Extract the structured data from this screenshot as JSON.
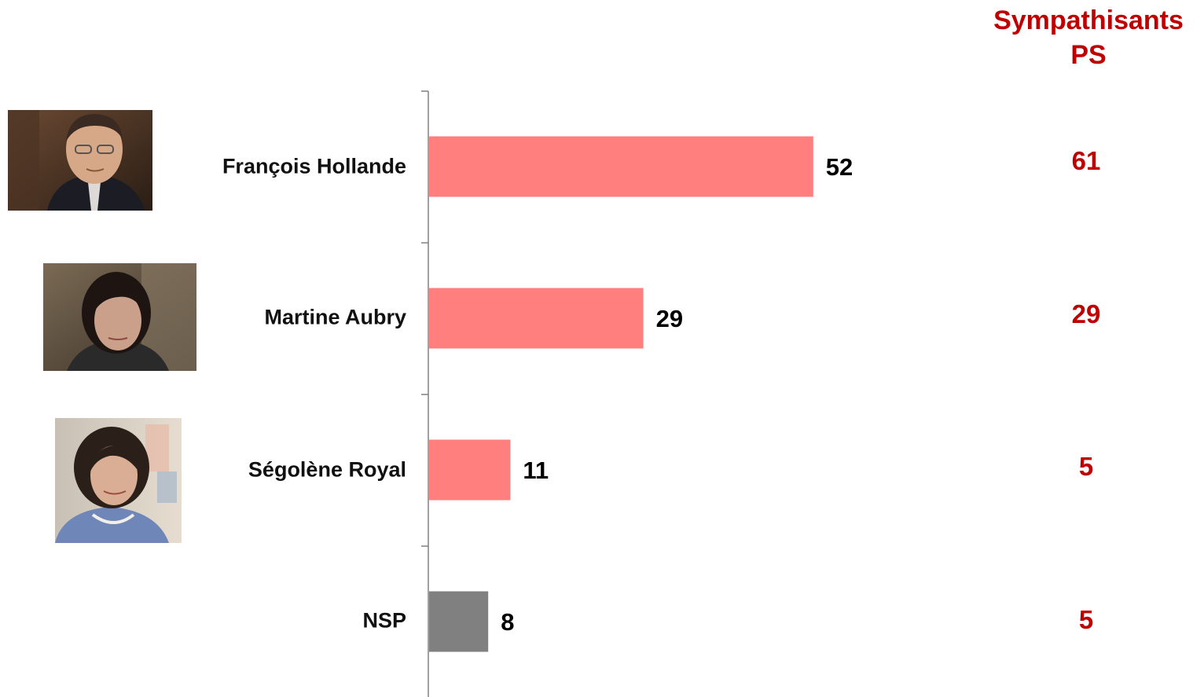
{
  "header": {
    "line1": "Sympathisants",
    "line2": "PS"
  },
  "colors": {
    "bar_main": "#ff7f7f",
    "bar_nsp": "#808080",
    "accent_red": "#c00000",
    "axis": "#808080"
  },
  "chart_data": {
    "type": "bar",
    "orientation": "horizontal",
    "categories": [
      "François Hollande",
      "Martine Aubry",
      "Ségolène Royal",
      "NSP"
    ],
    "values": [
      52,
      29,
      11,
      8
    ],
    "bar_colors": [
      "#ff7f7f",
      "#ff7f7f",
      "#ff7f7f",
      "#808080"
    ],
    "xlim": [
      0,
      100
    ],
    "grid": false,
    "side_column": {
      "title": "Sympathisants PS",
      "values": [
        61,
        29,
        5,
        5
      ]
    }
  },
  "rows": [
    {
      "label": "François Hollande",
      "value": "52",
      "ps": "61",
      "photo": "portrait-francois-hollande"
    },
    {
      "label": "Martine Aubry",
      "value": "29",
      "ps": "29",
      "photo": "portrait-martine-aubry"
    },
    {
      "label": "Ségolène Royal",
      "value": "11",
      "ps": "5",
      "photo": "portrait-segolene-royal"
    },
    {
      "label": "NSP",
      "value": "8",
      "ps": "5",
      "photo": ""
    }
  ]
}
